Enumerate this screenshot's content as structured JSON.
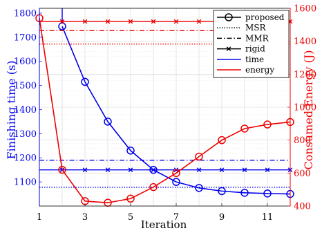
{
  "chart_data": {
    "type": "line",
    "xlabel": "Iteration",
    "ylabel_left": "Finishing time (s)",
    "ylabel_right": "Consumed Energy (J)",
    "xlim": [
      1,
      12
    ],
    "ylim_left": [
      1000,
      1820
    ],
    "ylim_right": [
      400,
      1600
    ],
    "xticks": [
      1,
      3,
      5,
      7,
      9,
      11
    ],
    "yticks_left": [
      1100,
      1200,
      1300,
      1400,
      1500,
      1600,
      1700,
      1800
    ],
    "yticks_right": [
      400,
      600,
      800,
      1000,
      1200,
      1400,
      1600
    ],
    "grid": true,
    "legend_position": "top-right",
    "legend": [
      {
        "label": "proposed",
        "style": "line-circle"
      },
      {
        "label": "MSR",
        "style": "dotted"
      },
      {
        "label": "MMR",
        "style": "dashdot"
      },
      {
        "label": "rigid",
        "style": "line-x"
      },
      {
        "label": "time",
        "style": "solid",
        "color": "#0000ee"
      },
      {
        "label": "energy",
        "style": "solid",
        "color": "#ee0000"
      }
    ],
    "series": [
      {
        "metric": "time",
        "method": "proposed",
        "axis": "left",
        "color": "#0000ee",
        "style": "line-circle",
        "x": [
          2,
          3,
          4,
          5,
          6,
          7,
          8,
          9,
          10,
          11,
          12
        ],
        "y": [
          1745,
          1515,
          1350,
          1230,
          1150,
          1100,
          1075,
          1062,
          1055,
          1052,
          1050
        ]
      },
      {
        "metric": "time",
        "method": "proposed-start",
        "axis": "left",
        "color": "#0000ee",
        "style": "solid",
        "x": [
          2,
          2
        ],
        "y": [
          1820,
          1760
        ]
      },
      {
        "metric": "time",
        "method": "MSR",
        "axis": "left",
        "color": "#0000ee",
        "style": "dotted",
        "x": [
          1,
          12
        ],
        "y": [
          1078,
          1078
        ]
      },
      {
        "metric": "time",
        "method": "MMR",
        "axis": "left",
        "color": "#0000ee",
        "style": "dashdot",
        "x": [
          1,
          12
        ],
        "y": [
          1190,
          1190
        ]
      },
      {
        "metric": "time",
        "method": "rigid",
        "axis": "left",
        "color": "#0000ee",
        "style": "line-x",
        "x": [
          2,
          3,
          4,
          5,
          6,
          7,
          8,
          9,
          10,
          11,
          12
        ],
        "xmin": 1,
        "y": [
          1150,
          1150,
          1150,
          1150,
          1150,
          1150,
          1150,
          1150,
          1150,
          1150,
          1150
        ]
      },
      {
        "metric": "energy",
        "method": "proposed",
        "axis": "right",
        "color": "#ee0000",
        "style": "line-circle",
        "x": [
          1,
          2,
          3,
          4,
          5,
          6,
          7,
          8,
          9,
          10,
          11,
          12
        ],
        "y": [
          1540,
          620,
          430,
          420,
          445,
          515,
          600,
          700,
          800,
          870,
          895,
          910
        ]
      },
      {
        "metric": "energy",
        "method": "MSR",
        "axis": "right",
        "color": "#ee0000",
        "style": "dotted",
        "x": [
          1,
          12
        ],
        "y": [
          1383,
          1383
        ]
      },
      {
        "metric": "energy",
        "method": "MMR",
        "axis": "right",
        "color": "#ee0000",
        "style": "dashdot",
        "x": [
          1,
          12
        ],
        "y": [
          1465,
          1465
        ]
      },
      {
        "metric": "energy",
        "method": "rigid",
        "axis": "right",
        "color": "#ee0000",
        "style": "line-x",
        "x": [
          2,
          3,
          4,
          5,
          6,
          7,
          8,
          9,
          10,
          11,
          12
        ],
        "xmin": 1,
        "y": [
          1520,
          1520,
          1520,
          1520,
          1520,
          1520,
          1520,
          1520,
          1520,
          1520,
          1520
        ]
      }
    ]
  }
}
